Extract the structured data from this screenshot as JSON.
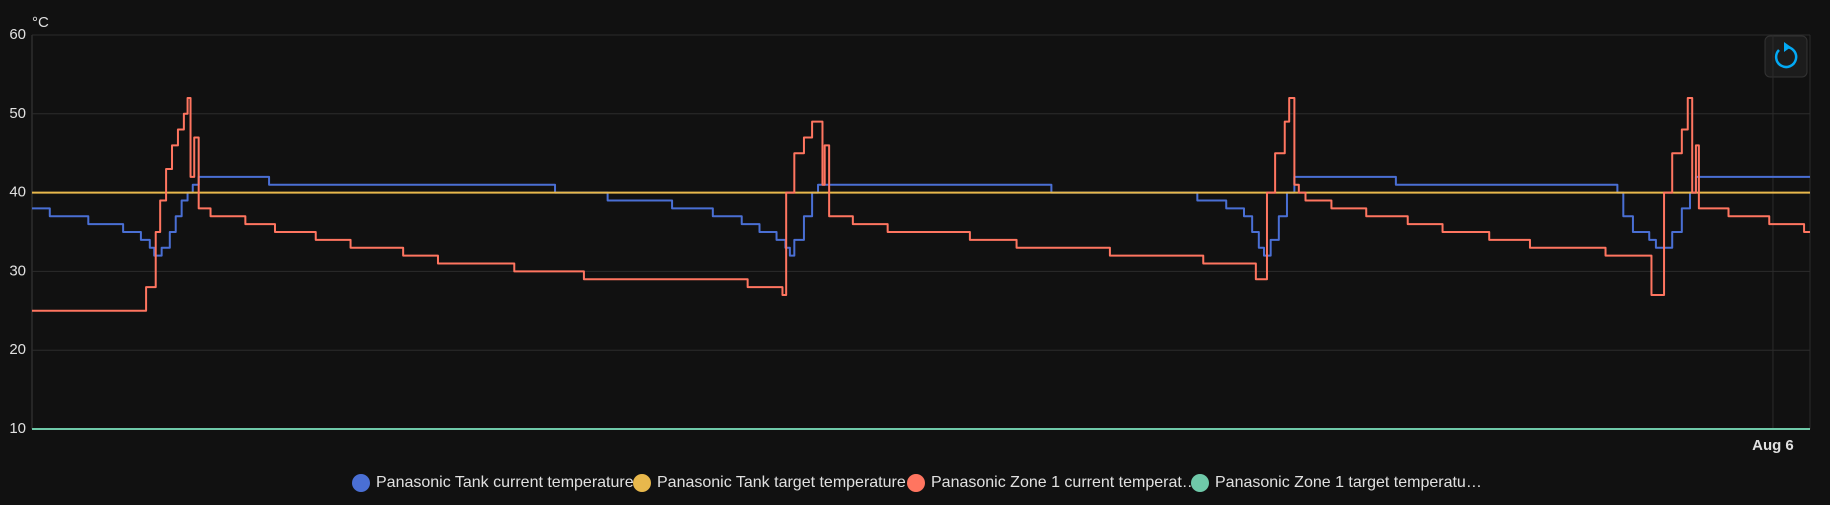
{
  "chart_data": {
    "type": "line",
    "y_label": "°C",
    "ylim": [
      10,
      60
    ],
    "yticks": [
      10,
      20,
      30,
      40,
      50,
      60
    ],
    "xlim": [
      -23.5,
      0.5
    ],
    "xticks": [
      {
        "value": 0,
        "label": "Aug 6"
      }
    ],
    "grid": true,
    "step": true,
    "legend": "bottom",
    "series": [
      {
        "name": "Panasonic Tank current temperature",
        "color": "#4a6fd4",
        "x": [
          -23.5,
          -23.26,
          -22.74,
          -22.27,
          -22.03,
          -21.91,
          -21.85,
          -21.75,
          -21.64,
          -21.56,
          -21.48,
          -21.4,
          -21.33,
          -21.25,
          -20.3,
          -16.44,
          -15.73,
          -14.86,
          -14.31,
          -13.92,
          -13.68,
          -13.45,
          -13.33,
          -13.27,
          -13.21,
          -13.08,
          -12.97,
          -12.89,
          -9.74,
          -7.77,
          -7.38,
          -7.14,
          -7.03,
          -6.94,
          -6.87,
          -6.78,
          -6.67,
          -6.56,
          -6.46,
          -5.09,
          -2.1,
          -2.02,
          -1.89,
          -1.67,
          -1.58,
          -1.36,
          -1.23,
          -1.12,
          -1.04,
          0.5
        ],
        "values": [
          38,
          37,
          36,
          35,
          34,
          33,
          32,
          33,
          35,
          37,
          39,
          40,
          41,
          42,
          41,
          40,
          39,
          38,
          37,
          36,
          35,
          34,
          33,
          32,
          34,
          37,
          40,
          41,
          40,
          39,
          38,
          37,
          35,
          33,
          32,
          34,
          37,
          40,
          42,
          41,
          40,
          37,
          35,
          34,
          33,
          35,
          38,
          40,
          42,
          42
        ]
      },
      {
        "name": "Panasonic Tank target temperature",
        "color": "#e8b84c",
        "x": [
          -23.5,
          0.5
        ],
        "values": [
          40,
          40
        ]
      },
      {
        "name": "Panasonic Zone 1 current temperat…",
        "color": "#ff7560",
        "x": [
          -23.5,
          -21.99,
          -21.96,
          -21.88,
          -21.83,
          -21.77,
          -21.69,
          -21.61,
          -21.53,
          -21.45,
          -21.4,
          -21.36,
          -21.31,
          -21.25,
          -21.09,
          -20.62,
          -20.22,
          -19.67,
          -19.2,
          -18.49,
          -18.02,
          -16.99,
          -16.05,
          -13.84,
          -13.37,
          -13.32,
          -13.21,
          -13.08,
          -12.97,
          -12.86,
          -12.83,
          -12.8,
          -12.74,
          -12.42,
          -11.95,
          -10.84,
          -10.21,
          -8.95,
          -7.69,
          -6.98,
          -6.87,
          -6.83,
          -6.72,
          -6.59,
          -6.53,
          -6.46,
          -6.4,
          -6.31,
          -5.96,
          -5.49,
          -4.93,
          -4.46,
          -3.83,
          -3.28,
          -2.26,
          -1.7,
          -1.64,
          -1.54,
          -1.47,
          -1.36,
          -1.23,
          -1.15,
          -1.09,
          -1.04,
          -1.0,
          -0.6,
          -0.05,
          0.42,
          0.5
        ],
        "values": [
          25,
          25,
          28,
          28,
          35,
          39,
          43,
          46,
          48,
          50,
          52,
          42,
          47,
          38,
          37,
          36,
          35,
          34,
          33,
          32,
          31,
          30,
          29,
          28,
          27,
          40,
          45,
          47,
          49,
          49,
          41,
          46,
          37,
          36,
          35,
          34,
          33,
          32,
          31,
          29,
          29,
          40,
          45,
          49,
          52,
          41,
          40,
          39,
          38,
          37,
          36,
          35,
          34,
          33,
          32,
          32,
          27,
          27,
          40,
          45,
          48,
          52,
          40,
          46,
          38,
          37,
          36,
          35,
          35
        ]
      },
      {
        "name": "Panasonic Zone 1 target temperatu…",
        "color": "#6fc9a9",
        "x": [
          -23.5,
          0.5
        ],
        "values": [
          10,
          10
        ]
      }
    ]
  }
}
